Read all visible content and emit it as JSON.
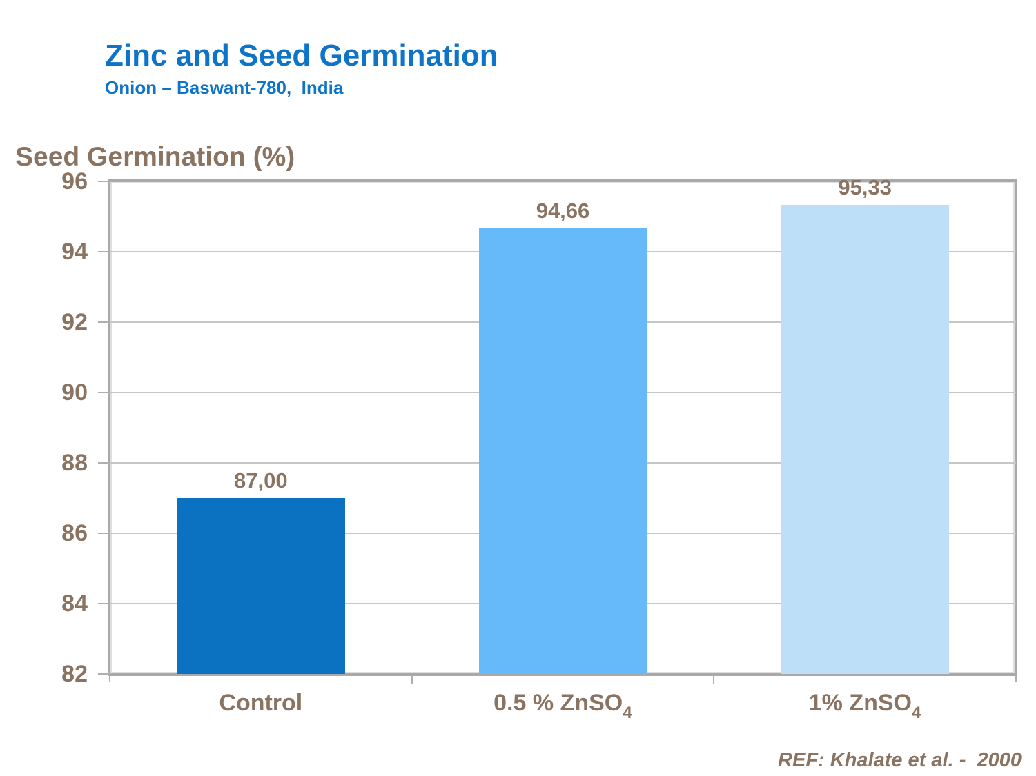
{
  "header": {
    "title": "Zinc and Seed Germination",
    "subtitle": "Onion – Baswant-780,  India"
  },
  "chart_data": {
    "type": "bar",
    "title": "Zinc and Seed Germination",
    "subtitle": "Onion – Baswant-780, India",
    "ylabel": "Seed Germination (%)",
    "xlabel": "",
    "ylim": [
      82,
      96
    ],
    "ytick_step": 2,
    "yticks": [
      96,
      94,
      92,
      90,
      88,
      86,
      84,
      82
    ],
    "grid": "horizontal-light-gray",
    "legend": "none",
    "categories": [
      "Control",
      "0.5 % ZnSO₄",
      "1% ZnSO₄"
    ],
    "categories_display": [
      {
        "text": "Control",
        "sub": ""
      },
      {
        "text": "0.5 % ZnSO",
        "sub": "4"
      },
      {
        "text": "1% ZnSO",
        "sub": "4"
      }
    ],
    "values": [
      87.0,
      94.66,
      95.33
    ],
    "value_labels": [
      "87,00",
      "94,66",
      "95,33"
    ],
    "bar_colors": [
      "#0b72c1",
      "#66baf9",
      "#bedff8"
    ]
  },
  "footer": {
    "ref": "REF: Khalate et al. -  2000"
  },
  "colors": {
    "title_blue": "#0d74c8",
    "text_brown": "#8a7461",
    "plot_border_gray": "#a9a9a9",
    "gridline_gray": "#c6c6c6",
    "tick_gray": "#b1aeae"
  }
}
